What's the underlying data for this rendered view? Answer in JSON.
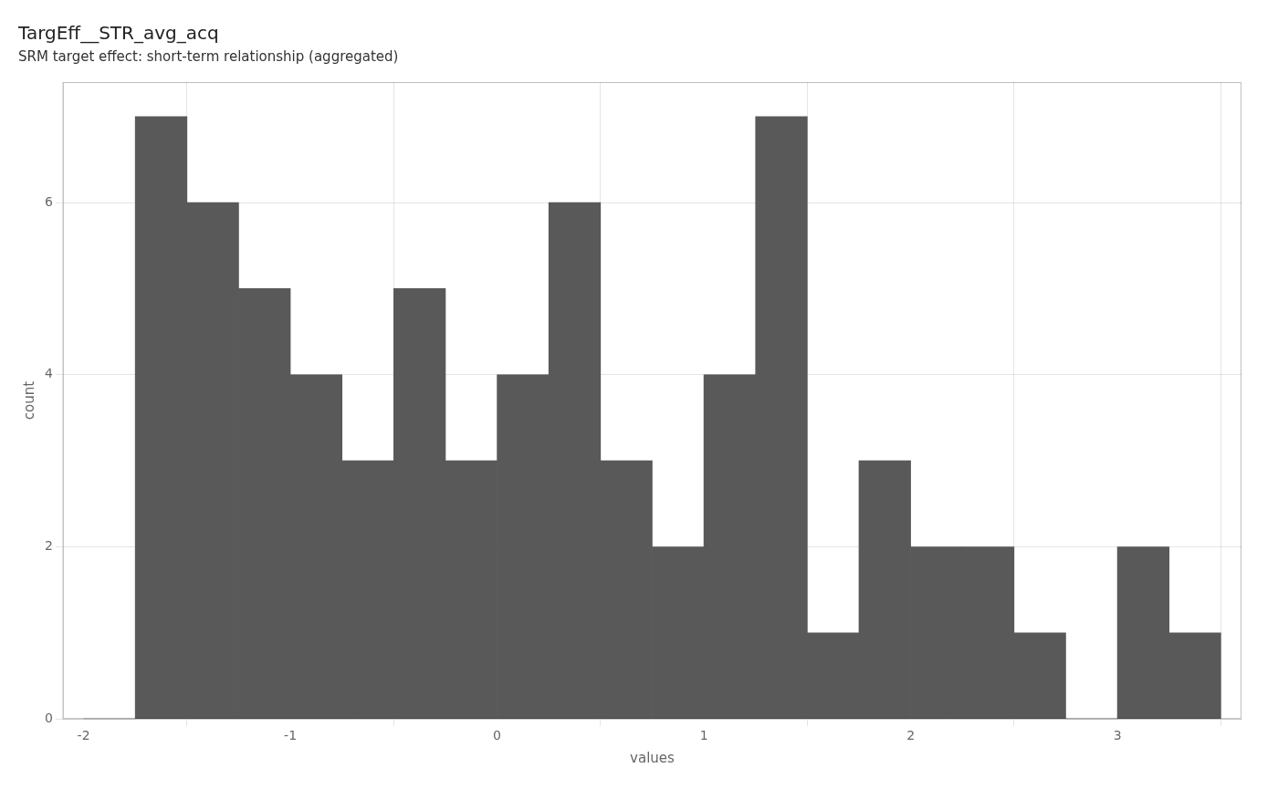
{
  "chart_data": {
    "type": "histogram",
    "title": "TargEff__STR_avg_acq",
    "subtitle": "SRM target effect: short-term relationship (aggregated)",
    "xlabel": "values",
    "ylabel": "count",
    "bins": [
      -2.0,
      -1.75,
      -1.5,
      -1.25,
      -1.0,
      -0.75,
      -0.5,
      -0.25,
      0.0,
      0.25,
      0.5,
      0.75,
      1.0,
      1.25,
      1.5,
      1.75,
      2.0,
      2.25,
      2.5,
      2.75,
      3.0,
      3.25,
      3.5
    ],
    "counts": [
      0,
      7,
      6,
      5,
      4,
      3,
      5,
      3,
      4,
      6,
      3,
      2,
      4,
      7,
      1,
      3,
      2,
      2,
      1,
      0,
      2,
      1
    ],
    "color": "#595959",
    "xlim": [
      -2.1,
      3.6
    ],
    "ylim": [
      0,
      7.4
    ],
    "xticks": [
      -2,
      -1,
      0,
      1,
      2,
      3
    ],
    "yticks": [
      0,
      2,
      4,
      6
    ],
    "grid": true
  }
}
